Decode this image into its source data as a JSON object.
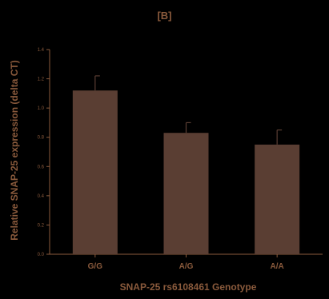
{
  "colors": {
    "background": "#000000",
    "text": "#8a5a3c",
    "bar_fill": "#5a3e33",
    "axis": "#8a5a3c"
  },
  "chart_data": {
    "type": "bar",
    "panel_label": "[B]",
    "categories": [
      "G/G",
      "A/G",
      "A/A"
    ],
    "values": [
      1.12,
      0.83,
      0.75
    ],
    "error_upper": [
      0.1,
      0.07,
      0.1
    ],
    "ylabel": "Relative SNAP-25 expression (delta CT)",
    "xlabel": "SNAP-25 rs6108461 Genotype",
    "ylim": [
      0,
      1.4
    ],
    "yticks": [
      "0.0",
      "0.2",
      "0.4",
      "0.6",
      "0.8",
      "1.0",
      "1.2",
      "1.4"
    ],
    "grid": false,
    "legend": "none"
  }
}
